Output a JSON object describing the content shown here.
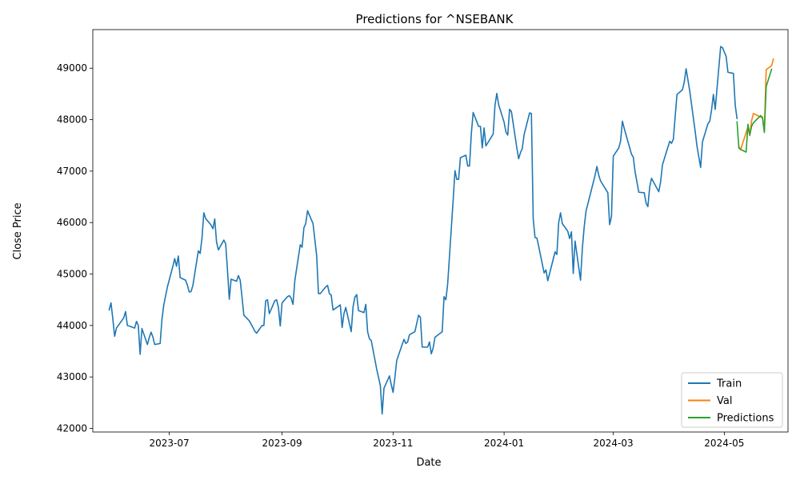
{
  "chart_data": {
    "type": "line",
    "title": "Predictions for ^NSEBANK",
    "xlabel": "Date",
    "ylabel": "Close Price",
    "xlim": [
      "2023-05-20",
      "2024-06-05"
    ],
    "ylim": [
      41930,
      49750
    ],
    "x_ticks": [
      "2023-07-01",
      "2023-09-01",
      "2023-11-01",
      "2024-01-01",
      "2024-03-01",
      "2024-05-01"
    ],
    "x_tick_labels": [
      "2023-07",
      "2023-09",
      "2023-11",
      "2024-01",
      "2024-03",
      "2024-05"
    ],
    "y_ticks": [
      42000,
      43000,
      44000,
      45000,
      46000,
      47000,
      48000,
      49000
    ],
    "y_tick_labels": [
      "42000",
      "43000",
      "44000",
      "45000",
      "46000",
      "47000",
      "48000",
      "49000"
    ],
    "grid": false,
    "legend_position": "lower-right",
    "series": [
      {
        "name": "Train",
        "color": "#1f77b4",
        "points": [
          [
            "2023-05-29",
            44300
          ],
          [
            "2023-05-30",
            44440
          ],
          [
            "2023-05-31",
            44130
          ],
          [
            "2023-06-01",
            43790
          ],
          [
            "2023-06-02",
            43950
          ],
          [
            "2023-06-05",
            44100
          ],
          [
            "2023-06-06",
            44150
          ],
          [
            "2023-06-07",
            44270
          ],
          [
            "2023-06-08",
            44000
          ],
          [
            "2023-06-09",
            43990
          ],
          [
            "2023-06-12",
            43950
          ],
          [
            "2023-06-13",
            44080
          ],
          [
            "2023-06-14",
            44000
          ],
          [
            "2023-06-15",
            43440
          ],
          [
            "2023-06-16",
            43940
          ],
          [
            "2023-06-19",
            43630
          ],
          [
            "2023-06-20",
            43760
          ],
          [
            "2023-06-21",
            43870
          ],
          [
            "2023-06-22",
            43780
          ],
          [
            "2023-06-23",
            43630
          ],
          [
            "2023-06-26",
            43650
          ],
          [
            "2023-06-27",
            44120
          ],
          [
            "2023-06-28",
            44400
          ],
          [
            "2023-06-30",
            44750
          ],
          [
            "2023-07-03",
            45150
          ],
          [
            "2023-07-04",
            45300
          ],
          [
            "2023-07-05",
            45150
          ],
          [
            "2023-07-06",
            45350
          ],
          [
            "2023-07-07",
            44930
          ],
          [
            "2023-07-10",
            44880
          ],
          [
            "2023-07-11",
            44780
          ],
          [
            "2023-07-12",
            44650
          ],
          [
            "2023-07-13",
            44660
          ],
          [
            "2023-07-14",
            44780
          ],
          [
            "2023-07-17",
            45450
          ],
          [
            "2023-07-18",
            45400
          ],
          [
            "2023-07-19",
            45700
          ],
          [
            "2023-07-20",
            46190
          ],
          [
            "2023-07-21",
            46080
          ],
          [
            "2023-07-24",
            45950
          ],
          [
            "2023-07-25",
            45880
          ],
          [
            "2023-07-26",
            46070
          ],
          [
            "2023-07-27",
            45620
          ],
          [
            "2023-07-28",
            45470
          ],
          [
            "2023-07-31",
            45660
          ],
          [
            "2023-08-01",
            45590
          ],
          [
            "2023-08-02",
            45080
          ],
          [
            "2023-08-03",
            44510
          ],
          [
            "2023-08-04",
            44900
          ],
          [
            "2023-08-07",
            44860
          ],
          [
            "2023-08-08",
            44970
          ],
          [
            "2023-08-09",
            44880
          ],
          [
            "2023-08-10",
            44550
          ],
          [
            "2023-08-11",
            44200
          ],
          [
            "2023-08-14",
            44090
          ],
          [
            "2023-08-16",
            43960
          ],
          [
            "2023-08-17",
            43890
          ],
          [
            "2023-08-18",
            43850
          ],
          [
            "2023-08-21",
            44000
          ],
          [
            "2023-08-22",
            44000
          ],
          [
            "2023-08-23",
            44480
          ],
          [
            "2023-08-24",
            44500
          ],
          [
            "2023-08-25",
            44230
          ],
          [
            "2023-08-28",
            44480
          ],
          [
            "2023-08-29",
            44500
          ],
          [
            "2023-08-30",
            44350
          ],
          [
            "2023-08-31",
            43990
          ],
          [
            "2023-09-01",
            44440
          ],
          [
            "2023-09-04",
            44560
          ],
          [
            "2023-09-05",
            44580
          ],
          [
            "2023-09-06",
            44530
          ],
          [
            "2023-09-07",
            44410
          ],
          [
            "2023-09-08",
            44870
          ],
          [
            "2023-09-11",
            45570
          ],
          [
            "2023-09-12",
            45520
          ],
          [
            "2023-09-13",
            45900
          ],
          [
            "2023-09-14",
            45980
          ],
          [
            "2023-09-15",
            46230
          ],
          [
            "2023-09-18",
            45980
          ],
          [
            "2023-09-20",
            45360
          ],
          [
            "2023-09-21",
            44620
          ],
          [
            "2023-09-22",
            44620
          ],
          [
            "2023-09-25",
            44750
          ],
          [
            "2023-09-26",
            44780
          ],
          [
            "2023-09-27",
            44620
          ],
          [
            "2023-09-28",
            44590
          ],
          [
            "2023-09-29",
            44300
          ],
          [
            "2023-10-03",
            44400
          ],
          [
            "2023-10-04",
            43960
          ],
          [
            "2023-10-05",
            44230
          ],
          [
            "2023-10-06",
            44350
          ],
          [
            "2023-10-09",
            43880
          ],
          [
            "2023-10-10",
            44360
          ],
          [
            "2023-10-11",
            44550
          ],
          [
            "2023-10-12",
            44600
          ],
          [
            "2023-10-13",
            44290
          ],
          [
            "2023-10-16",
            44250
          ],
          [
            "2023-10-17",
            44410
          ],
          [
            "2023-10-18",
            43880
          ],
          [
            "2023-10-19",
            43740
          ],
          [
            "2023-10-20",
            43710
          ],
          [
            "2023-10-23",
            43150
          ],
          [
            "2023-10-25",
            42830
          ],
          [
            "2023-10-26",
            42280
          ],
          [
            "2023-10-27",
            42780
          ],
          [
            "2023-10-30",
            43020
          ],
          [
            "2023-10-31",
            42850
          ],
          [
            "2023-11-01",
            42700
          ],
          [
            "2023-11-02",
            42990
          ],
          [
            "2023-11-03",
            43320
          ],
          [
            "2023-11-06",
            43630
          ],
          [
            "2023-11-07",
            43730
          ],
          [
            "2023-11-08",
            43650
          ],
          [
            "2023-11-09",
            43680
          ],
          [
            "2023-11-10",
            43820
          ],
          [
            "2023-11-13",
            43880
          ],
          [
            "2023-11-15",
            44200
          ],
          [
            "2023-11-16",
            44160
          ],
          [
            "2023-11-17",
            43580
          ],
          [
            "2023-11-20",
            43580
          ],
          [
            "2023-11-21",
            43680
          ],
          [
            "2023-11-22",
            43450
          ],
          [
            "2023-11-23",
            43560
          ],
          [
            "2023-11-24",
            43770
          ],
          [
            "2023-11-28",
            43880
          ],
          [
            "2023-11-29",
            44560
          ],
          [
            "2023-11-30",
            44500
          ],
          [
            "2023-12-01",
            44810
          ],
          [
            "2023-12-04",
            46430
          ],
          [
            "2023-12-05",
            47010
          ],
          [
            "2023-12-06",
            46840
          ],
          [
            "2023-12-07",
            46840
          ],
          [
            "2023-12-08",
            47260
          ],
          [
            "2023-12-11",
            47310
          ],
          [
            "2023-12-12",
            47100
          ],
          [
            "2023-12-13",
            47100
          ],
          [
            "2023-12-14",
            47730
          ],
          [
            "2023-12-15",
            48140
          ],
          [
            "2023-12-18",
            47870
          ],
          [
            "2023-12-19",
            47870
          ],
          [
            "2023-12-20",
            47450
          ],
          [
            "2023-12-21",
            47840
          ],
          [
            "2023-12-22",
            47490
          ],
          [
            "2023-12-26",
            47720
          ],
          [
            "2023-12-27",
            48280
          ],
          [
            "2023-12-28",
            48510
          ],
          [
            "2023-12-29",
            48290
          ],
          [
            "2024-01-01",
            47950
          ],
          [
            "2024-01-02",
            47760
          ],
          [
            "2024-01-03",
            47700
          ],
          [
            "2024-01-04",
            48200
          ],
          [
            "2024-01-05",
            48160
          ],
          [
            "2024-01-08",
            47450
          ],
          [
            "2024-01-09",
            47240
          ],
          [
            "2024-01-10",
            47360
          ],
          [
            "2024-01-11",
            47440
          ],
          [
            "2024-01-12",
            47710
          ],
          [
            "2024-01-15",
            48130
          ],
          [
            "2024-01-16",
            48120
          ],
          [
            "2024-01-17",
            46070
          ],
          [
            "2024-01-18",
            45710
          ],
          [
            "2024-01-19",
            45700
          ],
          [
            "2024-01-20",
            45540
          ],
          [
            "2024-01-23",
            45020
          ],
          [
            "2024-01-24",
            45080
          ],
          [
            "2024-01-25",
            44870
          ],
          [
            "2024-01-29",
            45430
          ],
          [
            "2024-01-30",
            45380
          ],
          [
            "2024-01-31",
            46000
          ],
          [
            "2024-02-01",
            46190
          ],
          [
            "2024-02-02",
            45980
          ],
          [
            "2024-02-05",
            45830
          ],
          [
            "2024-02-06",
            45690
          ],
          [
            "2024-02-07",
            45820
          ],
          [
            "2024-02-08",
            45010
          ],
          [
            "2024-02-09",
            45640
          ],
          [
            "2024-02-12",
            44880
          ],
          [
            "2024-02-13",
            45500
          ],
          [
            "2024-02-14",
            45910
          ],
          [
            "2024-02-15",
            46220
          ],
          [
            "2024-02-20",
            46920
          ],
          [
            "2024-02-21",
            47090
          ],
          [
            "2024-02-22",
            46920
          ],
          [
            "2024-02-23",
            46810
          ],
          [
            "2024-02-27",
            46580
          ],
          [
            "2024-02-28",
            45960
          ],
          [
            "2024-02-29",
            46120
          ],
          [
            "2024-03-01",
            47290
          ],
          [
            "2024-03-04",
            47450
          ],
          [
            "2024-03-05",
            47580
          ],
          [
            "2024-03-06",
            47970
          ],
          [
            "2024-03-07",
            47830
          ],
          [
            "2024-03-11",
            47330
          ],
          [
            "2024-03-12",
            47270
          ],
          [
            "2024-03-13",
            46980
          ],
          [
            "2024-03-14",
            46790
          ],
          [
            "2024-03-15",
            46590
          ],
          [
            "2024-03-18",
            46580
          ],
          [
            "2024-03-19",
            46380
          ],
          [
            "2024-03-20",
            46310
          ],
          [
            "2024-03-21",
            46690
          ],
          [
            "2024-03-22",
            46860
          ],
          [
            "2024-03-26",
            46600
          ],
          [
            "2024-03-27",
            46790
          ],
          [
            "2024-03-28",
            47120
          ],
          [
            "2024-04-01",
            47580
          ],
          [
            "2024-04-02",
            47540
          ],
          [
            "2024-04-03",
            47620
          ],
          [
            "2024-04-04",
            48060
          ],
          [
            "2024-04-05",
            48490
          ],
          [
            "2024-04-08",
            48580
          ],
          [
            "2024-04-09",
            48730
          ],
          [
            "2024-04-10",
            48990
          ],
          [
            "2024-04-12",
            48560
          ],
          [
            "2024-04-15",
            47770
          ],
          [
            "2024-04-16",
            47480
          ],
          [
            "2024-04-18",
            47070
          ],
          [
            "2024-04-19",
            47570
          ],
          [
            "2024-04-22",
            47920
          ],
          [
            "2024-04-23",
            47970
          ],
          [
            "2024-04-24",
            48190
          ],
          [
            "2024-04-25",
            48490
          ],
          [
            "2024-04-26",
            48200
          ],
          [
            "2024-04-29",
            49420
          ],
          [
            "2024-04-30",
            49400
          ],
          [
            "2024-05-02",
            49230
          ],
          [
            "2024-05-03",
            48920
          ],
          [
            "2024-05-06",
            48900
          ],
          [
            "2024-05-07",
            48280
          ],
          [
            "2024-05-08",
            48020
          ]
        ]
      },
      {
        "name": "Val",
        "color": "#ff7f0e",
        "points": [
          [
            "2024-05-09",
            47480
          ],
          [
            "2024-05-10",
            47420
          ],
          [
            "2024-05-13",
            47750
          ],
          [
            "2024-05-14",
            47860
          ],
          [
            "2024-05-15",
            47690
          ],
          [
            "2024-05-16",
            47980
          ],
          [
            "2024-05-17",
            48120
          ],
          [
            "2024-05-21",
            48050
          ],
          [
            "2024-05-22",
            48050
          ],
          [
            "2024-05-23",
            47780
          ],
          [
            "2024-05-24",
            48970
          ],
          [
            "2024-05-27",
            49050
          ],
          [
            "2024-05-28",
            49180
          ]
        ]
      },
      {
        "name": "Predictions",
        "color": "#2ca02c",
        "points": [
          [
            "2024-05-08",
            47960
          ],
          [
            "2024-05-09",
            47450
          ],
          [
            "2024-05-10",
            47420
          ],
          [
            "2024-05-13",
            47370
          ],
          [
            "2024-05-14",
            47910
          ],
          [
            "2024-05-15",
            47700
          ],
          [
            "2024-05-16",
            47870
          ],
          [
            "2024-05-17",
            47940
          ],
          [
            "2024-05-21",
            48080
          ],
          [
            "2024-05-22",
            48030
          ],
          [
            "2024-05-23",
            47750
          ],
          [
            "2024-05-24",
            48640
          ],
          [
            "2024-05-27",
            48980
          ]
        ]
      }
    ]
  }
}
